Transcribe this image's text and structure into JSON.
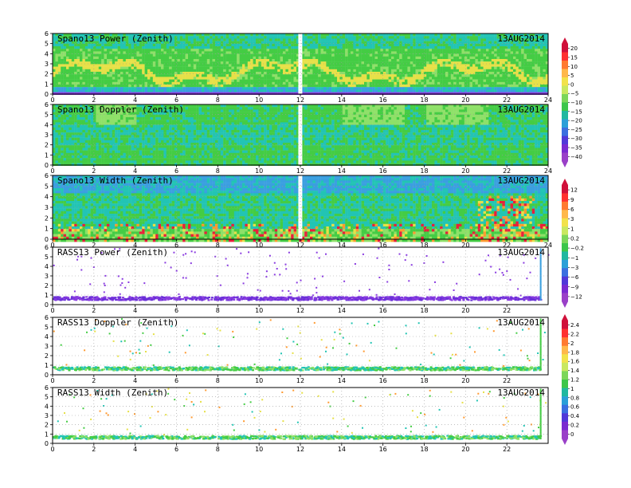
{
  "chart_data": [
    {
      "type": "heatmap",
      "id": "spano-power",
      "title": "Spano13 Power (Zenith)",
      "date": "13AUG2014",
      "x_ticks": [
        "0",
        "2",
        "4",
        "6",
        "8",
        "10",
        "12",
        "14",
        "16",
        "18",
        "20",
        "22",
        "24"
      ],
      "y_ticks": [
        "0",
        "1",
        "2",
        "3",
        "4",
        "5",
        "6"
      ],
      "xlim": [
        0,
        24
      ],
      "ylim": [
        0,
        6
      ],
      "grid": true,
      "colorbar": "cb1",
      "notes": "dense field mostly -25 to -10, high-power band near 1.5-3.5 km"
    },
    {
      "type": "heatmap",
      "id": "spano-doppler",
      "title": "Spano13 Doppler (Zenith)",
      "date": "13AUG2014",
      "x_ticks": [
        "0",
        "2",
        "4",
        "6",
        "8",
        "10",
        "12",
        "14",
        "16",
        "18",
        "20",
        "22",
        "24"
      ],
      "y_ticks": [
        "0",
        "1",
        "2",
        "3",
        "4",
        "5",
        "6"
      ],
      "xlim": [
        0,
        24
      ],
      "ylim": [
        0,
        6
      ],
      "grid": true,
      "colorbar": "cb1"
    },
    {
      "type": "heatmap",
      "id": "spano-width",
      "title": "Spano13 Width (Zenith)",
      "date": "13AUG2014",
      "x_ticks": [
        "0",
        "2",
        "4",
        "6",
        "8",
        "10",
        "12",
        "14",
        "16",
        "18",
        "20",
        "22",
        "24"
      ],
      "y_ticks": [
        "0",
        "1",
        "2",
        "3",
        "4",
        "5",
        "6"
      ],
      "xlim": [
        0,
        24
      ],
      "ylim": [
        0,
        6
      ],
      "grid": true,
      "colorbar": "cb2"
    },
    {
      "type": "scatter",
      "id": "rass-power",
      "title": "RASS13 Power (Zenith)",
      "date": "13AUG2014",
      "x_ticks": [
        "0",
        "2",
        "4",
        "6",
        "8",
        "10",
        "12",
        "14",
        "16",
        "18",
        "20",
        "22"
      ],
      "y_ticks": [
        "0",
        "1",
        "2",
        "3",
        "4",
        "5",
        "6"
      ],
      "xlim": [
        0,
        24
      ],
      "ylim": [
        0,
        6
      ],
      "grid": true,
      "colorbar": "cb2"
    },
    {
      "type": "scatter",
      "id": "rass-doppler",
      "title": "RASS13 Doppler (Zenith)",
      "date": "13AUG2014",
      "x_ticks": [
        "0",
        "2",
        "4",
        "6",
        "8",
        "10",
        "12",
        "14",
        "16",
        "18",
        "20",
        "22"
      ],
      "y_ticks": [
        "0",
        "1",
        "2",
        "3",
        "4",
        "5",
        "6"
      ],
      "xlim": [
        0,
        24
      ],
      "ylim": [
        0,
        6
      ],
      "grid": true,
      "colorbar": "cb3"
    },
    {
      "type": "scatter",
      "id": "rass-width",
      "title": "RASS13 Width (Zenith)",
      "date": "13AUG2014",
      "x_ticks": [
        "0",
        "2",
        "4",
        "6",
        "8",
        "10",
        "12",
        "14",
        "16",
        "18",
        "20",
        "22"
      ],
      "y_ticks": [
        "0",
        "1",
        "2",
        "3",
        "4",
        "5",
        "6"
      ],
      "xlim": [
        0,
        24
      ],
      "ylim": [
        0,
        6
      ],
      "grid": true,
      "colorbar": "cb3"
    }
  ],
  "colorbars": {
    "cb1": {
      "labels": [
        "20",
        "15",
        "10",
        "5",
        "0",
        "−5",
        "−10",
        "−15",
        "−20",
        "−25",
        "−30",
        "−35",
        "−40"
      ],
      "colors": [
        "#d0103a",
        "#ff3030",
        "#ff7a30",
        "#ffb84a",
        "#f2e24a",
        "#c9e860",
        "#7cd65a",
        "#3cc64a",
        "#20b8a0",
        "#2a9fd8",
        "#3a6fe0",
        "#5038d8",
        "#7a2ad0",
        "#9a40c8"
      ]
    },
    "cb2": {
      "labels": [
        "12",
        "9",
        "6",
        "3",
        "1",
        "0.2",
        "−0.2",
        "−1",
        "−3",
        "−6",
        "−9",
        "−12"
      ],
      "colors": [
        "#d0103a",
        "#ff3030",
        "#ff7a30",
        "#ffb84a",
        "#f2e24a",
        "#c9e860",
        "#7cd65a",
        "#3cc64a",
        "#20b8a0",
        "#2a9fd8",
        "#3a6fe0",
        "#5038d8",
        "#7a2ad0",
        "#9a40c8"
      ]
    },
    "cb3": {
      "labels": [
        "2.4",
        "2.2",
        "2",
        "1.8",
        "1.6",
        "1.4",
        "1.2",
        "1",
        "0.8",
        "0.6",
        "0.4",
        "0.2",
        "0"
      ],
      "colors": [
        "#d0103a",
        "#ff3030",
        "#ff7a30",
        "#ffb84a",
        "#f2e24a",
        "#c9e860",
        "#7cd65a",
        "#3cc64a",
        "#20b8a0",
        "#2a9fd8",
        "#3a6fe0",
        "#5038d8",
        "#7a2ad0",
        "#9a40c8"
      ]
    }
  },
  "palette": {
    "blue": "#3a9fe0",
    "cyan": "#22c4b4",
    "green": "#44cc44",
    "lightgreen": "#8ee068",
    "yellow": "#e6e048",
    "orange": "#ff9a30",
    "red": "#e8203a",
    "purple": "#8a3ce0",
    "white": "#ffffff"
  }
}
